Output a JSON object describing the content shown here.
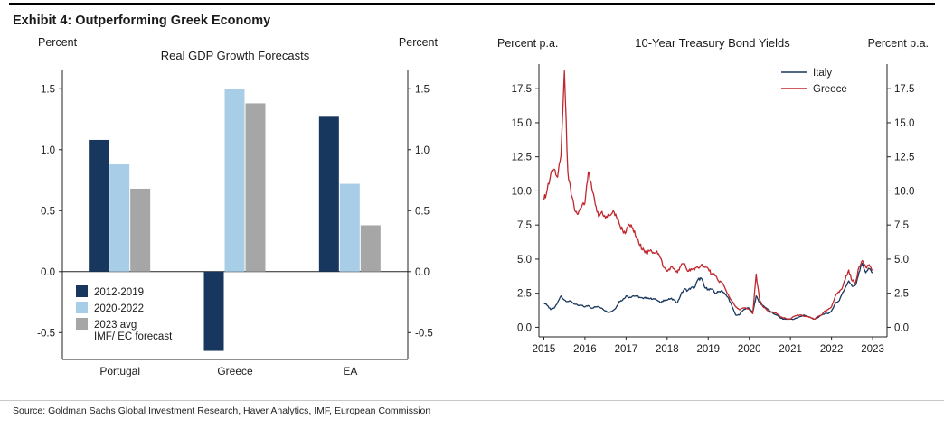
{
  "page": {
    "exhibit_title": "Exhibit 4: Outperforming Greek Economy",
    "source_line": "Source: Goldman Sachs Global Investment Research, Haver Analytics, IMF, European Commission"
  },
  "colors": {
    "navy": "#17375E",
    "light_blue": "#A8CDE6",
    "gray": "#A6A6A6",
    "red": "#C0272D",
    "axis": "#222222"
  },
  "chart_data": [
    {
      "type": "bar",
      "title": "Real GDP Growth Forecasts",
      "left_axis_label": "Percent",
      "right_axis_label": "Percent",
      "categories": [
        "Portugal",
        "Greece",
        "EA"
      ],
      "series": [
        {
          "name": "2012-2019",
          "color": "#17375E",
          "values": [
            1.08,
            -0.65,
            1.27
          ]
        },
        {
          "name": "2020-2022",
          "color": "#A8CDE6",
          "values": [
            0.88,
            1.5,
            0.72
          ]
        },
        {
          "name": "2023 avg IMF/ EC forecast",
          "color": "#A6A6A6",
          "values": [
            0.68,
            1.38,
            0.38
          ]
        }
      ],
      "legend_lines": [
        [
          "2012-2019"
        ],
        [
          "2020-2022"
        ],
        [
          "2023 avg",
          "IMF/ EC forecast"
        ]
      ],
      "legend_position": "bottom-left",
      "yticks": [
        1.5,
        1.0,
        0.5,
        0.0,
        -0.5
      ],
      "ylim": [
        -0.72,
        1.65
      ],
      "grid": false
    },
    {
      "type": "line",
      "title": "10-Year Treasury Bond Yields",
      "left_axis_label": "Percent p.a.",
      "right_axis_label": "Percent p.a.",
      "x_ticks": [
        2015,
        2016,
        2017,
        2018,
        2019,
        2020,
        2021,
        2022,
        2023
      ],
      "xlim": [
        2014.88,
        2023.35
      ],
      "yticks": [
        0.0,
        2.5,
        5.0,
        7.5,
        10.0,
        12.5,
        15.0,
        17.5
      ],
      "ylim": [
        -0.7,
        19.3
      ],
      "legend_position": "top-right",
      "series": [
        {
          "name": "Italy",
          "color": "#17375E",
          "x_start": 2015.0,
          "x_step": 0.083333,
          "values": [
            1.8,
            1.6,
            1.3,
            1.4,
            1.8,
            2.3,
            2.0,
            1.9,
            1.9,
            1.7,
            1.6,
            1.6,
            1.5,
            1.6,
            1.4,
            1.5,
            1.5,
            1.4,
            1.2,
            1.1,
            1.2,
            1.4,
            1.9,
            2.0,
            2.3,
            2.2,
            2.3,
            2.3,
            2.2,
            2.1,
            2.2,
            2.1,
            2.1,
            2.0,
            1.8,
            2.0,
            2.0,
            2.1,
            2.0,
            1.8,
            2.4,
            2.8,
            2.7,
            2.9,
            2.9,
            3.5,
            3.6,
            2.9,
            2.8,
            2.8,
            2.5,
            2.6,
            2.7,
            2.4,
            2.1,
            1.5,
            0.9,
            0.9,
            1.2,
            1.4,
            1.4,
            1.1,
            2.3,
            1.8,
            1.6,
            1.4,
            1.2,
            1.0,
            0.9,
            0.7,
            0.6,
            0.6,
            0.6,
            0.6,
            0.7,
            0.8,
            0.9,
            0.8,
            0.7,
            0.6,
            0.7,
            0.9,
            1.0,
            1.0,
            1.2,
            1.7,
            1.9,
            2.4,
            2.9,
            3.4,
            3.0,
            3.1,
            4.0,
            4.7,
            4.0,
            4.3,
            4.0
          ]
        },
        {
          "name": "Greece",
          "color": "#C0272D",
          "x_start": 2015.0,
          "x_step": 0.083333,
          "values": [
            9.3,
            10.1,
            11.2,
            11.6,
            11.0,
            12.6,
            18.8,
            11.4,
            9.7,
            8.6,
            8.3,
            8.8,
            9.1,
            11.4,
            10.2,
            9.0,
            8.1,
            8.5,
            8.0,
            8.2,
            8.4,
            8.3,
            7.6,
            7.1,
            7.0,
            7.5,
            7.2,
            6.6,
            6.0,
            5.8,
            5.4,
            5.6,
            5.5,
            5.6,
            5.1,
            4.4,
            4.1,
            4.4,
            4.3,
            4.0,
            4.5,
            4.7,
            4.1,
            4.3,
            4.2,
            4.4,
            4.6,
            4.4,
            4.3,
            3.9,
            3.8,
            3.4,
            3.3,
            2.8,
            2.3,
            1.9,
            1.5,
            1.3,
            1.4,
            1.4,
            1.3,
            1.0,
            3.9,
            2.0,
            1.5,
            1.3,
            1.1,
            1.1,
            1.0,
            0.8,
            0.7,
            0.6,
            0.6,
            0.8,
            0.9,
            0.9,
            0.8,
            0.8,
            0.7,
            0.6,
            0.8,
            0.9,
            1.2,
            1.3,
            1.5,
            2.2,
            2.6,
            2.8,
            3.5,
            4.2,
            3.4,
            3.3,
            4.4,
            4.9,
            4.4,
            4.6,
            4.2
          ]
        }
      ],
      "grid": false
    }
  ]
}
